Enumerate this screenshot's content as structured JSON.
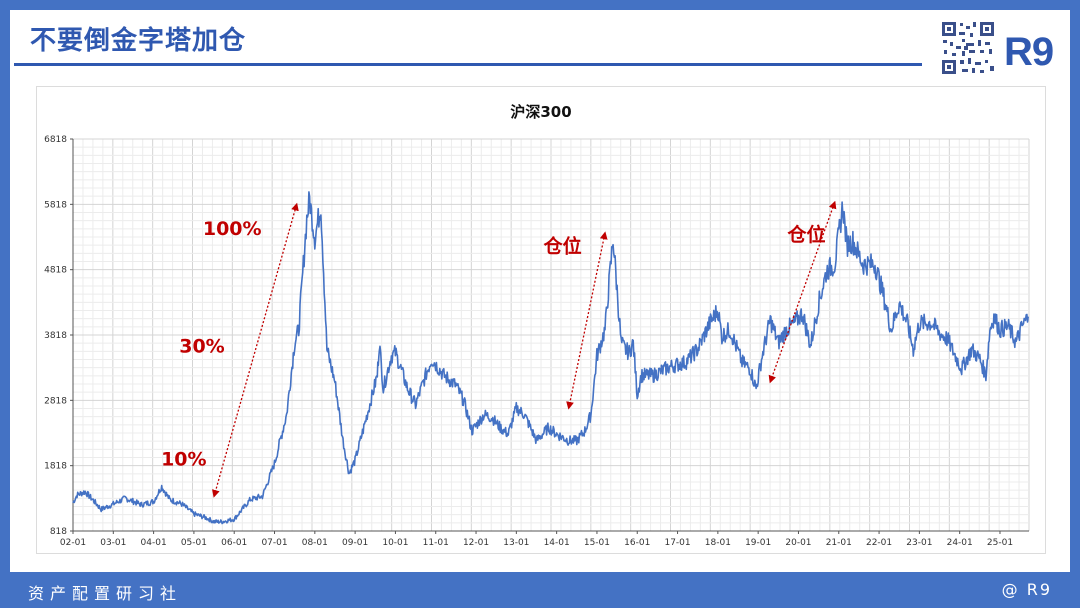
{
  "header": {
    "title": "不要倒金字塔加仓",
    "logo": "R9"
  },
  "footer": {
    "left_text": "资产配置研习社",
    "right_text": "@ R9"
  },
  "colors": {
    "accent": "#4472c4",
    "title": "#2f58b0",
    "line": "#4472c4",
    "annotation": "#c00000"
  },
  "chart_data": {
    "type": "line",
    "title": "沪深300",
    "xlabel": "",
    "ylabel": "",
    "ylim": [
      818,
      6818
    ],
    "yticks": [
      "818",
      "1818",
      "2818",
      "3818",
      "4818",
      "5818",
      "6818"
    ],
    "xlim": [
      2002.0,
      2025.72
    ],
    "xticks": [
      "02-01",
      "03-01",
      "04-01",
      "05-01",
      "06-01",
      "07-01",
      "08-01",
      "09-01",
      "10-01",
      "11-01",
      "12-01",
      "13-01",
      "14-01",
      "15-01",
      "16-01",
      "17-01",
      "18-01",
      "19-01",
      "20-01",
      "21-01",
      "22-01",
      "23-01",
      "24-01",
      "25-01"
    ],
    "grid": true,
    "series": [
      {
        "values": [
          [
            2002.0,
            1250
          ],
          [
            2002.1,
            1370
          ],
          [
            2002.3,
            1420
          ],
          [
            2002.5,
            1290
          ],
          [
            2002.7,
            1150
          ],
          [
            2003.0,
            1230
          ],
          [
            2003.3,
            1320
          ],
          [
            2003.7,
            1220
          ],
          [
            2004.0,
            1270
          ],
          [
            2004.2,
            1500
          ],
          [
            2004.4,
            1300
          ],
          [
            2004.7,
            1230
          ],
          [
            2005.0,
            1080
          ],
          [
            2005.3,
            1020
          ],
          [
            2005.5,
            960
          ],
          [
            2005.7,
            960
          ],
          [
            2006.0,
            1000
          ],
          [
            2006.4,
            1300
          ],
          [
            2006.7,
            1350
          ],
          [
            2007.0,
            1850
          ],
          [
            2007.3,
            2600
          ],
          [
            2007.5,
            3700
          ],
          [
            2007.6,
            3900
          ],
          [
            2007.8,
            5600
          ],
          [
            2007.87,
            5900
          ],
          [
            2008.0,
            5300
          ],
          [
            2008.15,
            5800
          ],
          [
            2008.3,
            3600
          ],
          [
            2008.5,
            3100
          ],
          [
            2008.7,
            2200
          ],
          [
            2008.85,
            1700
          ],
          [
            2009.0,
            1900
          ],
          [
            2009.3,
            2600
          ],
          [
            2009.55,
            3200
          ],
          [
            2009.6,
            3700
          ],
          [
            2009.7,
            3000
          ],
          [
            2009.9,
            3500
          ],
          [
            2010.0,
            3550
          ],
          [
            2010.3,
            3000
          ],
          [
            2010.5,
            2750
          ],
          [
            2010.75,
            3200
          ],
          [
            2010.9,
            3450
          ],
          [
            2011.2,
            3200
          ],
          [
            2011.5,
            3050
          ],
          [
            2011.7,
            2800
          ],
          [
            2011.9,
            2350
          ],
          [
            2012.2,
            2600
          ],
          [
            2012.4,
            2550
          ],
          [
            2012.6,
            2400
          ],
          [
            2012.8,
            2300
          ],
          [
            2013.0,
            2700
          ],
          [
            2013.2,
            2600
          ],
          [
            2013.5,
            2200
          ],
          [
            2013.8,
            2400
          ],
          [
            2014.0,
            2300
          ],
          [
            2014.3,
            2200
          ],
          [
            2014.5,
            2200
          ],
          [
            2014.7,
            2350
          ],
          [
            2014.85,
            2600
          ],
          [
            2015.0,
            3500
          ],
          [
            2015.2,
            3900
          ],
          [
            2015.4,
            5300
          ],
          [
            2015.5,
            4500
          ],
          [
            2015.6,
            3700
          ],
          [
            2015.7,
            3600
          ],
          [
            2015.8,
            3550
          ],
          [
            2015.9,
            3700
          ],
          [
            2016.0,
            2900
          ],
          [
            2016.1,
            3200
          ],
          [
            2016.4,
            3200
          ],
          [
            2016.7,
            3300
          ],
          [
            2016.9,
            3350
          ],
          [
            2017.2,
            3400
          ],
          [
            2017.5,
            3600
          ],
          [
            2017.8,
            4000
          ],
          [
            2018.0,
            4200
          ],
          [
            2018.1,
            3800
          ],
          [
            2018.3,
            3900
          ],
          [
            2018.6,
            3400
          ],
          [
            2018.8,
            3300
          ],
          [
            2018.95,
            3000
          ],
          [
            2019.1,
            3500
          ],
          [
            2019.3,
            4050
          ],
          [
            2019.5,
            3700
          ],
          [
            2019.7,
            3900
          ],
          [
            2019.9,
            4000
          ],
          [
            2020.1,
            4150
          ],
          [
            2020.3,
            3650
          ],
          [
            2020.5,
            4300
          ],
          [
            2020.7,
            4800
          ],
          [
            2020.9,
            4900
          ],
          [
            2021.1,
            5800
          ],
          [
            2021.2,
            5200
          ],
          [
            2021.35,
            5250
          ],
          [
            2021.6,
            4900
          ],
          [
            2021.9,
            4900
          ],
          [
            2022.1,
            4450
          ],
          [
            2022.3,
            3900
          ],
          [
            2022.5,
            4300
          ],
          [
            2022.7,
            4000
          ],
          [
            2022.85,
            3600
          ],
          [
            2023.0,
            4000
          ],
          [
            2023.3,
            4000
          ],
          [
            2023.5,
            3850
          ],
          [
            2023.7,
            3750
          ],
          [
            2023.85,
            3550
          ],
          [
            2024.05,
            3300
          ],
          [
            2024.3,
            3600
          ],
          [
            2024.5,
            3450
          ],
          [
            2024.65,
            3200
          ],
          [
            2024.75,
            3900
          ],
          [
            2024.85,
            4100
          ],
          [
            2025.0,
            3900
          ],
          [
            2025.2,
            3950
          ],
          [
            2025.4,
            3700
          ],
          [
            2025.55,
            3950
          ],
          [
            2025.7,
            4100
          ]
        ]
      }
    ],
    "annotations": [
      {
        "text": "10%",
        "x": 2004.75,
        "y": 1818
      },
      {
        "text": "30%",
        "x": 2005.2,
        "y": 3550
      },
      {
        "text": "100%",
        "x": 2005.95,
        "y": 5350
      },
      {
        "text": "仓位",
        "x": 2014.15,
        "y": 5080
      },
      {
        "text": "仓位",
        "x": 2020.2,
        "y": 5260
      }
    ],
    "arrows": [
      {
        "from": [
          2005.5,
          1350
        ],
        "to": [
          2007.55,
          5820
        ]
      },
      {
        "from": [
          2014.3,
          2700
        ],
        "to": [
          2015.2,
          5380
        ]
      },
      {
        "from": [
          2019.3,
          3100
        ],
        "to": [
          2020.9,
          5850
        ]
      }
    ]
  }
}
